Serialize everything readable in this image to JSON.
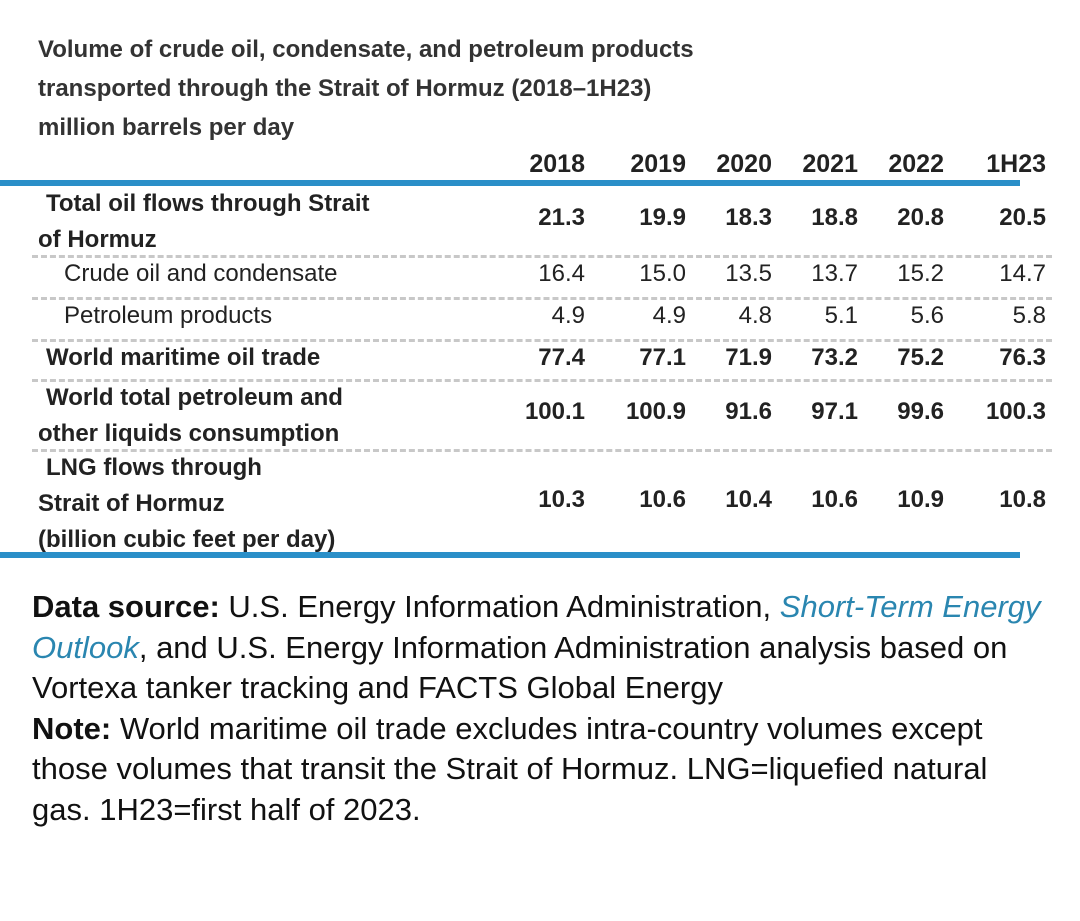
{
  "title_lines": [
    "Volume of crude oil, condensate, and petroleum products",
    "transported through the Strait of Hormuz (2018–1H23)",
    "million barrels per day"
  ],
  "chart_data": {
    "type": "table",
    "title": "Volume of crude oil, condensate, and petroleum products transported through the Strait of Hormuz (2018–1H23)",
    "units": "million barrels per day",
    "columns": [
      "2018",
      "2019",
      "2020",
      "2021",
      "2022",
      "1H23"
    ],
    "rows": [
      {
        "label_lines": [
          "Total oil flows through Strait",
          "of Hormuz"
        ],
        "values": [
          "21.3",
          "19.9",
          "18.3",
          "18.8",
          "20.8",
          "20.5"
        ]
      },
      {
        "label_lines": [
          "Crude oil and condensate"
        ],
        "values": [
          "16.4",
          "15.0",
          "13.5",
          "13.7",
          "15.2",
          "14.7"
        ]
      },
      {
        "label_lines": [
          "Petroleum products"
        ],
        "values": [
          "4.9",
          "4.9",
          "4.8",
          "5.1",
          "5.6",
          "5.8"
        ]
      },
      {
        "label_lines": [
          "World maritime oil trade"
        ],
        "values": [
          "77.4",
          "77.1",
          "71.9",
          "73.2",
          "75.2",
          "76.3"
        ]
      },
      {
        "label_lines": [
          "World total petroleum and",
          "other liquids consumption"
        ],
        "values": [
          "100.1",
          "100.9",
          "91.6",
          "97.1",
          "99.6",
          "100.3"
        ]
      },
      {
        "label_lines": [
          "LNG flows through",
          "Strait of Hormuz",
          "(billion cubic feet per day)"
        ],
        "values": [
          "10.3",
          "10.6",
          "10.4",
          "10.6",
          "10.9",
          "10.8"
        ]
      }
    ]
  },
  "notes": {
    "source_label": "Data source:",
    "source_pre": "U.S. Energy Information Administration,",
    "source_link": "Short-Term Energy Outlook",
    "source_post": ", and U.S. Energy Information Administration analysis based on Vortexa tanker tracking and FACTS Global Energy",
    "note_label": "Note:",
    "note_text": "World maritime oil trade excludes intra-country volumes except those volumes that transit the Strait of Hormuz. LNG=liquefied natural gas. 1H23=first half of 2023."
  },
  "colors": {
    "accent_rule": "#2a8fc8",
    "link": "#2a86b0",
    "dash": "#c8c8c8"
  }
}
